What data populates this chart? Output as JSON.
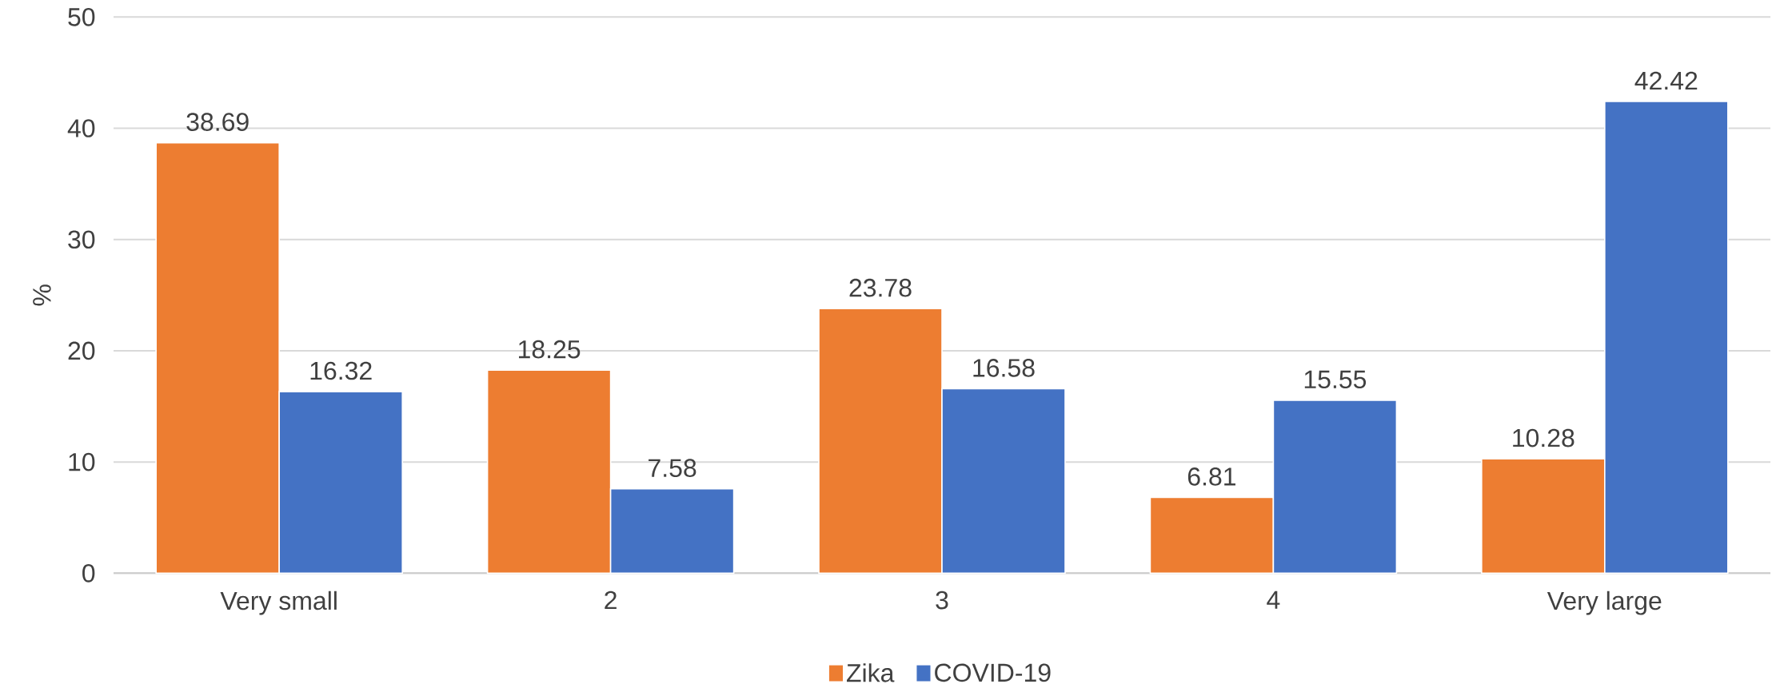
{
  "chart_data": {
    "type": "bar",
    "ylabel": "%",
    "categories": [
      "Very small",
      "2",
      "3",
      "4",
      "Very large"
    ],
    "series": [
      {
        "name": "Zika",
        "color": "#ed7d31",
        "values": [
          38.69,
          18.25,
          23.78,
          6.81,
          10.28
        ]
      },
      {
        "name": "COVID-19",
        "color": "#4472c4",
        "values": [
          16.32,
          7.58,
          16.58,
          15.55,
          42.42
        ]
      }
    ],
    "ylim": [
      0,
      50
    ],
    "yticks": [
      0,
      10,
      20,
      30,
      40,
      50
    ],
    "grid": "y",
    "legend": "bottom",
    "data_labels": true
  }
}
